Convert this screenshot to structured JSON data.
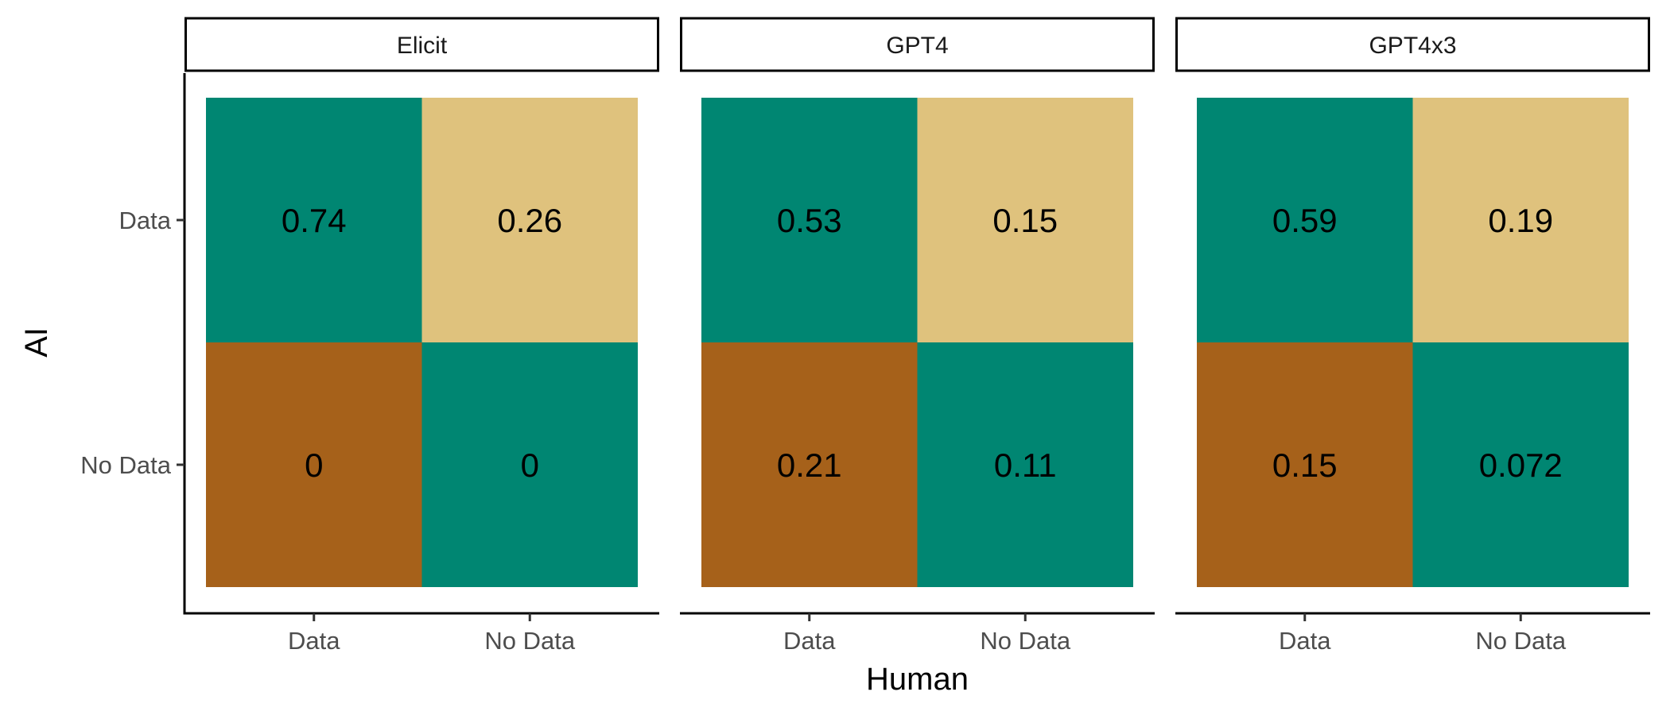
{
  "chart_data": {
    "type": "heatmap",
    "xlabel": "Human",
    "ylabel": "AI",
    "x_categories": [
      "Data",
      "No Data"
    ],
    "y_categories": [
      "Data",
      "No Data"
    ],
    "cell_colors": {
      "agree": "#008672",
      "ai_data_human_nodata": "#DFC27D",
      "ai_nodata_human_data": "#A6611A"
    },
    "panels": [
      {
        "name": "Elicit",
        "cells": [
          {
            "ai": "Data",
            "human": "Data",
            "value": 0.74,
            "label": "0.74"
          },
          {
            "ai": "Data",
            "human": "No Data",
            "value": 0.26,
            "label": "0.26"
          },
          {
            "ai": "No Data",
            "human": "Data",
            "value": 0,
            "label": "0"
          },
          {
            "ai": "No Data",
            "human": "No Data",
            "value": 0,
            "label": "0"
          }
        ]
      },
      {
        "name": "GPT4",
        "cells": [
          {
            "ai": "Data",
            "human": "Data",
            "value": 0.53,
            "label": "0.53"
          },
          {
            "ai": "Data",
            "human": "No Data",
            "value": 0.15,
            "label": "0.15"
          },
          {
            "ai": "No Data",
            "human": "Data",
            "value": 0.21,
            "label": "0.21"
          },
          {
            "ai": "No Data",
            "human": "No Data",
            "value": 0.11,
            "label": "0.11"
          }
        ]
      },
      {
        "name": "GPT4x3",
        "cells": [
          {
            "ai": "Data",
            "human": "Data",
            "value": 0.59,
            "label": "0.59"
          },
          {
            "ai": "Data",
            "human": "No Data",
            "value": 0.19,
            "label": "0.19"
          },
          {
            "ai": "No Data",
            "human": "Data",
            "value": 0.15,
            "label": "0.15"
          },
          {
            "ai": "No Data",
            "human": "No Data",
            "value": 0.072,
            "label": "0.072"
          }
        ]
      }
    ]
  }
}
